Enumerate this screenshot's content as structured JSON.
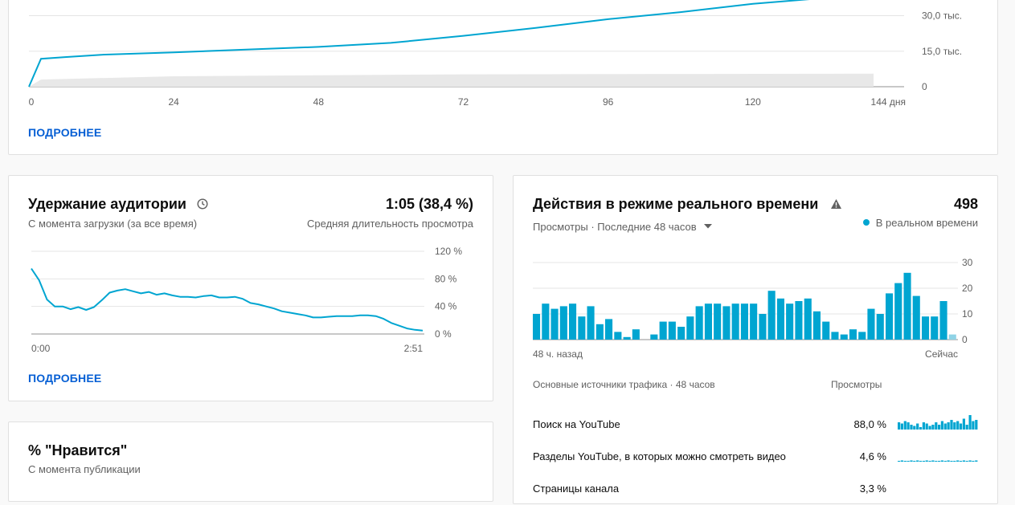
{
  "colors": {
    "accent": "#00a5d1",
    "link": "#065fd4",
    "grid": "#e5e5e5",
    "shade": "#e8e8e8"
  },
  "top_card": {
    "more_label": "ПОДРОБНЕЕ",
    "chart_data": {
      "type": "line",
      "x": [
        0,
        2,
        6,
        12,
        24,
        36,
        48,
        60,
        72,
        84,
        96,
        108,
        120,
        132,
        140
      ],
      "values": [
        0,
        11800,
        12500,
        13500,
        14500,
        15700,
        16800,
        18500,
        21500,
        24800,
        28500,
        31500,
        35000,
        37500,
        38600
      ],
      "baseline_range": [
        0,
        5500
      ],
      "xlim": [
        0,
        144
      ],
      "ylim": [
        0,
        40000
      ],
      "x_ticks": [
        "0",
        "24",
        "48",
        "72",
        "96",
        "120",
        "144 дня"
      ],
      "y_ticks": [
        "30,0 тыс.",
        "15,0 тыс.",
        "0"
      ]
    }
  },
  "retention": {
    "title": "Удержание аудитории",
    "subtitle": "С момента загрузки (за все время)",
    "value": "1:05 (38,4 %)",
    "value_caption": "Средняя длительность просмотра",
    "more_label": "ПОДРОБНЕЕ",
    "icon": "clock-icon",
    "chart_data": {
      "type": "line",
      "x": [
        0,
        2,
        4,
        6,
        8,
        10,
        12,
        14,
        16,
        18,
        20,
        22,
        24,
        26,
        28,
        30,
        32,
        34,
        36,
        38,
        40,
        42,
        44,
        46,
        48,
        50,
        52,
        54,
        56,
        58,
        60,
        62,
        64,
        66,
        68,
        70,
        72,
        74,
        76,
        78,
        80,
        82,
        84,
        86,
        88,
        90,
        92,
        94,
        96,
        98,
        100
      ],
      "values": [
        95,
        78,
        50,
        40,
        40,
        36,
        39,
        35,
        39,
        49,
        60,
        63,
        65,
        62,
        59,
        61,
        57,
        59,
        56,
        54,
        54,
        53,
        55,
        56,
        53,
        53,
        54,
        51,
        45,
        43,
        40,
        37,
        33,
        31,
        29,
        27,
        24,
        24,
        25,
        26,
        26,
        26,
        27,
        27,
        26,
        22,
        16,
        12,
        8,
        6,
        5
      ],
      "xlim": [
        0,
        100
      ],
      "ylim": [
        0,
        120
      ],
      "x_ticks": [
        "0:00",
        "2:51"
      ],
      "y_ticks": [
        "120 %",
        "80 %",
        "40 %",
        "0 %"
      ]
    }
  },
  "likes": {
    "title": "% \"Нравится\"",
    "subtitle": "С момента публикации"
  },
  "realtime": {
    "title": "Действия в режиме реального времени",
    "value": "498",
    "warning_icon": "warning-icon",
    "filter_label": "Просмотры · Последние 48 часов",
    "legend_label": "В реальном времени",
    "chart_data": {
      "type": "bar",
      "values": [
        10,
        14,
        12,
        13,
        14,
        9,
        13,
        6,
        8,
        3,
        1,
        4,
        0,
        2,
        7,
        7,
        5,
        9,
        13,
        14,
        14,
        13,
        14,
        14,
        14,
        10,
        19,
        16,
        14,
        15,
        16,
        11,
        7,
        3,
        2,
        4,
        3,
        12,
        10,
        18,
        22,
        26,
        17,
        9,
        9,
        15,
        2
      ],
      "ylim": [
        0,
        30
      ],
      "y_ticks": [
        "30",
        "20",
        "10",
        "0"
      ],
      "x_labels": [
        "48 ч. назад",
        "Сейчас"
      ]
    },
    "traffic_header": "Основные источники трафика · 48 часов",
    "traffic_col": "Просмотры",
    "sources": [
      {
        "name": "Поиск на YouTube",
        "value": "88,0 %",
        "spark": [
          6,
          5,
          7,
          6,
          4,
          3,
          5,
          2,
          6,
          5,
          3,
          4,
          6,
          4,
          7,
          5,
          6,
          8,
          6,
          7,
          5,
          9,
          4,
          12,
          7,
          8
        ]
      },
      {
        "name": "Разделы YouTube, в которых можно смотреть видео",
        "value": "4,6 %",
        "spark": [
          0,
          1,
          0,
          0,
          1,
          0,
          1,
          0,
          0,
          1,
          0,
          1,
          0,
          0,
          1,
          0,
          1,
          0,
          0,
          1,
          0,
          1,
          0,
          1,
          0,
          1
        ]
      },
      {
        "name": "Страницы канала",
        "value": "3,3 %",
        "spark": []
      }
    ]
  }
}
